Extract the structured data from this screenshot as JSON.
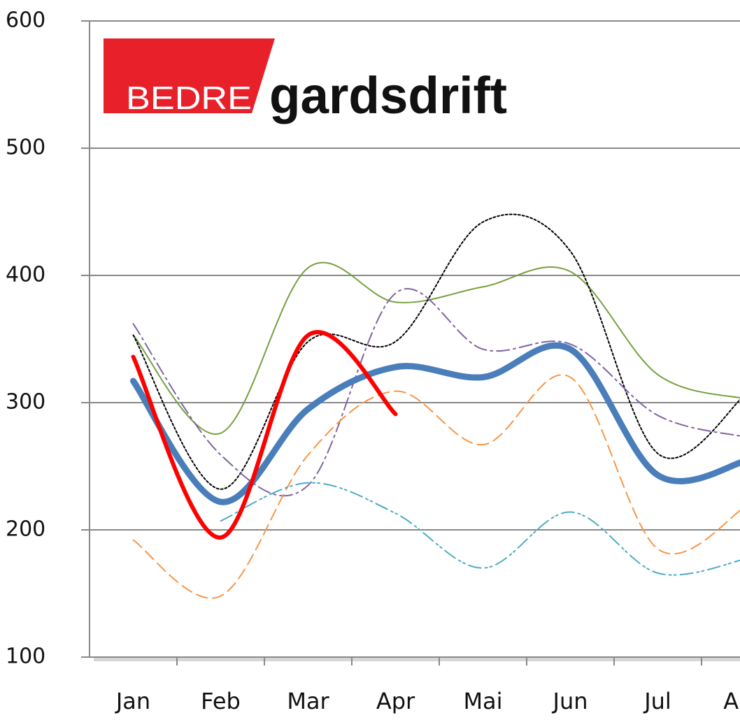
{
  "chart_data": {
    "type": "line",
    "logo": {
      "box": "BEDRE",
      "text": "gardsdrift"
    },
    "categories": [
      "Jan",
      "Feb",
      "Mar",
      "Apr",
      "Mai",
      "Jun",
      "Jul",
      "Aug"
    ],
    "ylim": [
      100,
      600
    ],
    "yticks": [
      100,
      200,
      300,
      400,
      500,
      600
    ],
    "grid": true,
    "series": [
      {
        "color": "#77a040",
        "width": 2,
        "dash": "",
        "values": [
          353,
          276,
          406,
          379,
          391,
          403,
          322,
          303
        ]
      },
      {
        "color": "#000000",
        "width": 2,
        "dash": "3 3",
        "values": [
          353,
          232,
          348,
          348,
          442,
          419,
          260,
          306
        ]
      },
      {
        "color": "#8064a2",
        "width": 2,
        "dash": "18 6 3 6",
        "values": [
          362,
          259,
          235,
          386,
          342,
          346,
          290,
          273
        ]
      },
      {
        "color": "#f79646",
        "width": 2,
        "dash": "16 8",
        "values": [
          192,
          148,
          259,
          309,
          267,
          320,
          185,
          218
        ]
      },
      {
        "color": "#4bacc6",
        "width": 2,
        "dash": "18 6 3 4 3 6",
        "values": [
          null,
          207,
          237,
          213,
          170,
          214,
          166,
          177
        ]
      },
      {
        "color": "#4a7ebb",
        "width": 9,
        "dash": "",
        "values": [
          317,
          222,
          295,
          328,
          320,
          342,
          243,
          254
        ]
      },
      {
        "color": "#ff0000",
        "width": 6,
        "dash": "",
        "values": [
          336,
          194,
          353,
          291,
          null,
          null,
          null,
          null
        ]
      }
    ]
  }
}
